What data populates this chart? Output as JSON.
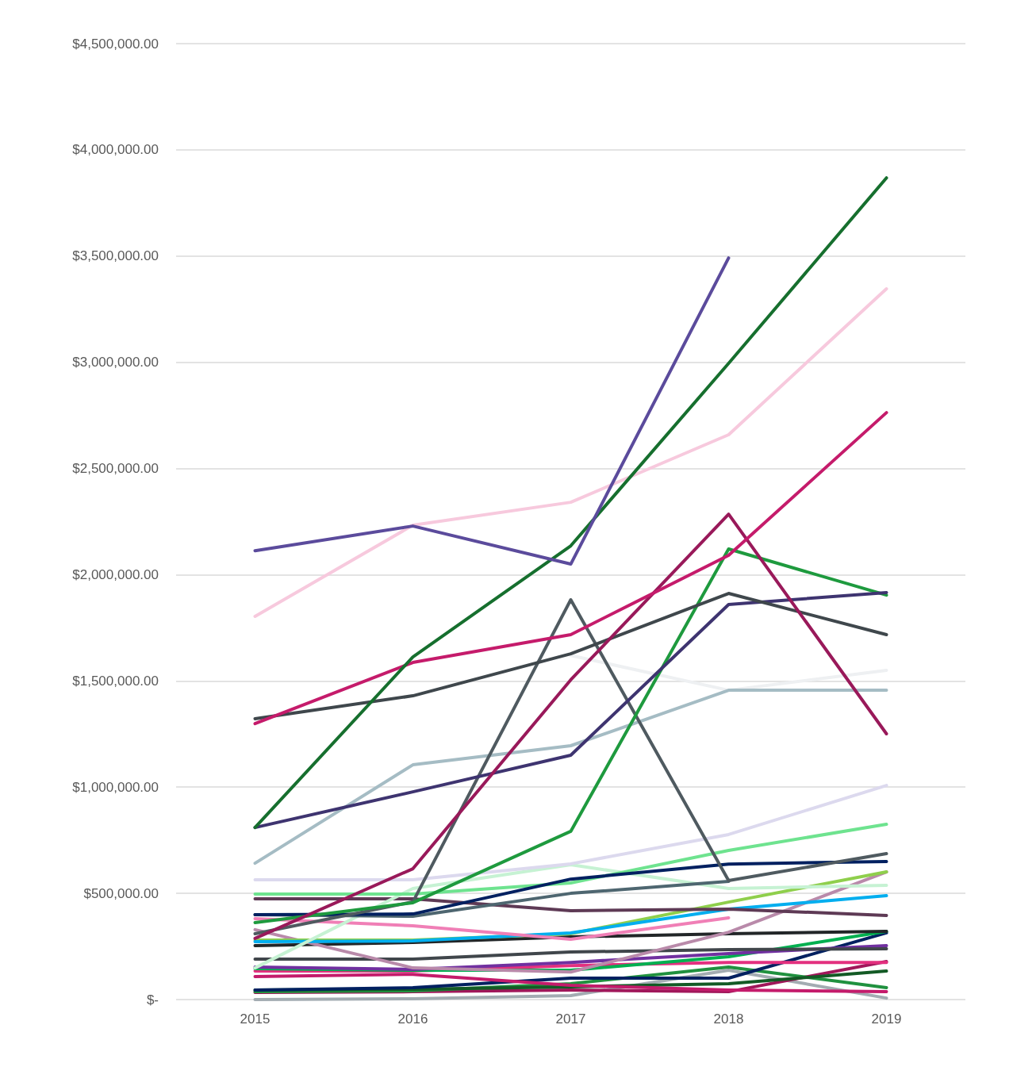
{
  "chart_data": {
    "type": "line",
    "categories": [
      "2015",
      "2016",
      "2017",
      "2018",
      "2019"
    ],
    "ylim": [
      0,
      4500000
    ],
    "yticks": [
      {
        "value": 0,
        "label": "$-"
      },
      {
        "value": 500000,
        "label": "$500,000.00"
      },
      {
        "value": 1000000,
        "label": "$1,000,000.00"
      },
      {
        "value": 1500000,
        "label": "$1,500,000.00"
      },
      {
        "value": 2000000,
        "label": "$2,000,000.00"
      },
      {
        "value": 2500000,
        "label": "$2,500,000.00"
      },
      {
        "value": 3000000,
        "label": "$3,000,000.00"
      },
      {
        "value": 3500000,
        "label": "$3,500,000.00"
      },
      {
        "value": 4000000,
        "label": "$4,000,000.00"
      },
      {
        "value": 4500000,
        "label": "$4,500,000.00"
      }
    ],
    "grid": "y",
    "marker": "none",
    "line_style": "solid",
    "series": [
      {
        "color": "#eef0f2",
        "values": [
          null,
          null,
          1620000,
          1456000,
          1550000
        ]
      },
      {
        "color": "#a3acb2",
        "values": [
          0,
          4000,
          19000,
          138000,
          7000
        ]
      },
      {
        "color": "#a0175a",
        "values": [
          34000,
          37000,
          45000,
          37000,
          179000
        ]
      },
      {
        "color": "#20913f",
        "values": [
          37000,
          41000,
          75000,
          153000,
          56000
        ]
      },
      {
        "color": "#135a25",
        "values": [
          45000,
          49000,
          60000,
          75000,
          134000
        ]
      },
      {
        "color": "#002060",
        "values": [
          45000,
          56000,
          101000,
          101000,
          314000
        ]
      },
      {
        "color": "#c41b6b",
        "values": [
          108000,
          119000,
          67000,
          45000,
          37000
        ]
      },
      {
        "color": "#e3307f",
        "values": [
          134000,
          134000,
          160000,
          175000,
          175000
        ]
      },
      {
        "color": "#00b050",
        "values": [
          146000,
          138000,
          138000,
          202000,
          321000
        ]
      },
      {
        "color": "#7030a0",
        "values": [
          153000,
          142000,
          175000,
          217000,
          254000
        ]
      },
      {
        "color": "#40464b",
        "values": [
          190000,
          190000,
          224000,
          235000,
          239000
        ]
      },
      {
        "color": "#222628",
        "values": [
          254000,
          269000,
          295000,
          310000,
          321000
        ]
      },
      {
        "color": "#b98aaa",
        "values": [
          329000,
          149000,
          130000,
          317000,
          601000
        ]
      },
      {
        "color": "#8fcf4c",
        "values": [
          280000,
          280000,
          310000,
          459000,
          601000
        ]
      },
      {
        "color": "#00aeef",
        "values": [
          273000,
          276000,
          314000,
          426000,
          489000
        ]
      },
      {
        "color": "#f07fb6",
        "values": [
          381000,
          347000,
          284000,
          385000,
          null
        ]
      },
      {
        "color": "#5e3a55",
        "values": [
          474000,
          474000,
          418000,
          426000,
          396000
        ]
      },
      {
        "color": "#c6f2d3",
        "values": [
          149000,
          523000,
          635000,
          523000,
          538000
        ]
      },
      {
        "color": "#6ee38f",
        "values": [
          497000,
          497000,
          549000,
          702000,
          825000
        ]
      },
      {
        "color": "#dcd9ee",
        "values": [
          564000,
          564000,
          639000,
          777000,
          1008000
        ]
      },
      {
        "color": "#4e6670",
        "values": [
          400000,
          392000,
          500000,
          556000,
          null
        ]
      },
      {
        "color": "#002060",
        "values": [
          400000,
          403000,
          567000,
          638000,
          650000
        ]
      },
      {
        "color": "#a5bcc4",
        "values": [
          642000,
          1105000,
          1195000,
          1456000,
          1456000
        ]
      },
      {
        "color": "#4f5a60",
        "values": [
          310000,
          460000,
          1882000,
          560000,
          687000
        ]
      },
      {
        "color": "#1e9a3e",
        "values": [
          362000,
          456000,
          792000,
          2121000,
          1904000
        ]
      },
      {
        "color": "#3e3470",
        "values": [
          810000,
          978000,
          1150000,
          1860000,
          1916000
        ]
      },
      {
        "color": "#3f474c",
        "values": [
          1322000,
          1430000,
          1628000,
          1912000,
          1718000
        ]
      },
      {
        "color": "#99195a",
        "values": [
          288000,
          616000,
          1505000,
          2285000,
          1251000
        ]
      },
      {
        "color": "#c51b6b",
        "values": [
          1299000,
          1587000,
          1718000,
          2091000,
          2763000
        ]
      },
      {
        "color": "#f7c9dd",
        "values": [
          1804000,
          2233000,
          2341000,
          2659000,
          3346000
        ]
      },
      {
        "color": "#166f2e",
        "values": [
          810000,
          1613000,
          2136000,
          2995000,
          3868000
        ]
      },
      {
        "color": "#5b4b9c",
        "values": [
          2113000,
          2229000,
          2050000,
          3491000,
          null
        ]
      }
    ]
  }
}
